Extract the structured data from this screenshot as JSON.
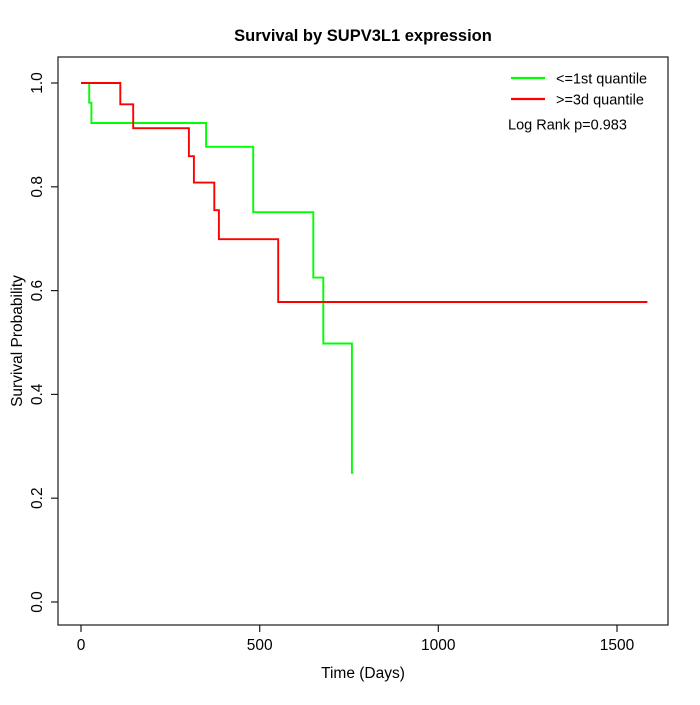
{
  "title": "Survival by SUPV3L1 expression",
  "axes": {
    "x_label": "Time (Days)",
    "y_label": "Survival Probability",
    "x_tick_labels": [
      "0",
      "500",
      "1000",
      "1500"
    ],
    "y_tick_labels": [
      "0.0",
      "0.2",
      "0.4",
      "0.6",
      "0.8",
      "1.0"
    ]
  },
  "legend": {
    "items": [
      {
        "label": "<=1st quantile",
        "color": "#00ff00"
      },
      {
        "label": ">=3d quantile",
        "color": "#ff0000"
      }
    ],
    "note": "Log Rank p=0.983"
  },
  "chart_data": {
    "type": "line",
    "subtype": "kaplan-meier-step",
    "title": "Survival by SUPV3L1 expression",
    "xlabel": "Time (Days)",
    "ylabel": "Survival Probability",
    "xlim": [
      0,
      1641
    ],
    "ylim": [
      0.0,
      1.0
    ],
    "xticks": [
      0,
      500,
      1000,
      1500
    ],
    "yticks": [
      0.0,
      0.2,
      0.4,
      0.6,
      0.8,
      1.0
    ],
    "grid": false,
    "legend_position": "top-right",
    "annotation": "Log Rank p=0.983",
    "series": [
      {
        "name": "<=1st quantile",
        "color": "#00ff00",
        "end_time": 762,
        "steps": [
          [
            0,
            1.0
          ],
          [
            23,
            0.962
          ],
          [
            29,
            0.923
          ],
          [
            350,
            0.877
          ],
          [
            482,
            0.751
          ],
          [
            650,
            0.625
          ],
          [
            678,
            0.498
          ],
          [
            758,
            0.249
          ]
        ]
      },
      {
        "name": ">=3d quantile",
        "color": "#ff0000",
        "end_time": 1585,
        "steps": [
          [
            0,
            1.0
          ],
          [
            110,
            0.959
          ],
          [
            146,
            0.913
          ],
          [
            302,
            0.859
          ],
          [
            316,
            0.808
          ],
          [
            373,
            0.755
          ],
          [
            386,
            0.699
          ],
          [
            552,
            0.578
          ]
        ]
      }
    ]
  }
}
